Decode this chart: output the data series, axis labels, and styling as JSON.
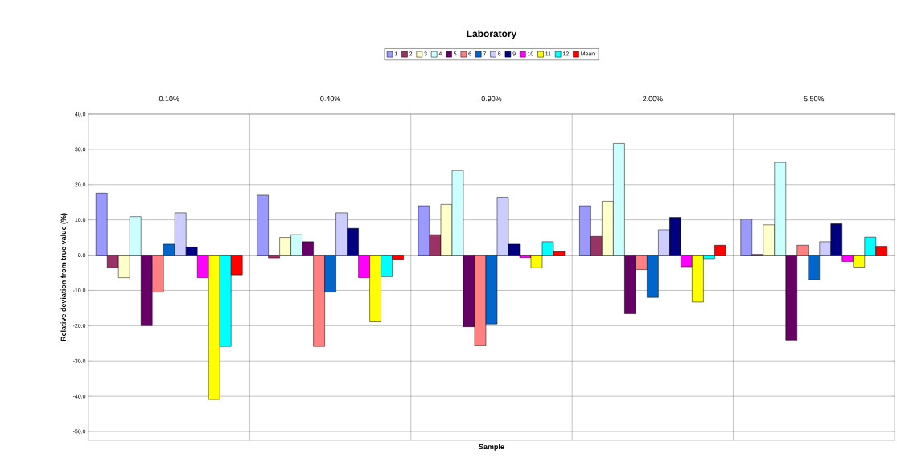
{
  "chart_data": {
    "type": "bar",
    "title": "Laboratory",
    "xlabel": "Sample",
    "ylabel": "Relative deviation from true value (%)",
    "categories": [
      "0.10%",
      "0.40%",
      "0.90%",
      "2.00%",
      "5.50%"
    ],
    "ylim": [
      -52.5,
      40
    ],
    "yticks": [
      {
        "value": -50,
        "label": "-50.0"
      },
      {
        "value": -40,
        "label": "-40.0"
      },
      {
        "value": -30,
        "label": "-30.0"
      },
      {
        "value": -20,
        "label": "-20.0"
      },
      {
        "value": -10,
        "label": "-10.0"
      },
      {
        "value": 0,
        "label": "0.0"
      },
      {
        "value": 10,
        "label": "10.0"
      },
      {
        "value": 20,
        "label": "20.0"
      },
      {
        "value": 30,
        "label": "30.0"
      },
      {
        "value": 40,
        "label": "40.0"
      }
    ],
    "grid": true,
    "legend": "top",
    "series": [
      {
        "name": "1",
        "color": "#9999ff",
        "values": [
          17.6,
          17.0,
          14.0,
          14.0,
          10.2
        ]
      },
      {
        "name": "2",
        "color": "#993366",
        "values": [
          -3.6,
          -0.8,
          5.8,
          5.3,
          0.2
        ]
      },
      {
        "name": "3",
        "color": "#ffffcc",
        "values": [
          -6.4,
          5.0,
          14.4,
          15.3,
          8.6
        ]
      },
      {
        "name": "4",
        "color": "#ccffff",
        "values": [
          10.9,
          5.8,
          24.0,
          31.7,
          26.3
        ]
      },
      {
        "name": "5",
        "color": "#660066",
        "values": [
          -20.0,
          3.8,
          -20.3,
          -16.6,
          -24.1
        ]
      },
      {
        "name": "6",
        "color": "#ff8080",
        "values": [
          -10.5,
          -25.9,
          -25.6,
          -4.1,
          2.8
        ]
      },
      {
        "name": "7",
        "color": "#0066cc",
        "values": [
          3.1,
          -10.5,
          -19.5,
          -12.0,
          -7.0
        ]
      },
      {
        "name": "8",
        "color": "#ccccff",
        "values": [
          12.0,
          12.0,
          16.4,
          7.2,
          3.8
        ]
      },
      {
        "name": "9",
        "color": "#000080",
        "values": [
          2.3,
          7.6,
          3.1,
          10.7,
          8.9
        ]
      },
      {
        "name": "10",
        "color": "#ff00ff",
        "values": [
          -6.4,
          -6.4,
          -0.7,
          -3.3,
          -1.8
        ]
      },
      {
        "name": "11",
        "color": "#ffff00",
        "values": [
          -40.9,
          -18.9,
          -3.6,
          -13.3,
          -3.4
        ]
      },
      {
        "name": "12",
        "color": "#00ffff",
        "values": [
          -25.9,
          -6.1,
          3.8,
          -1.0,
          5.1
        ]
      },
      {
        "name": "Mean",
        "color": "#ff0000",
        "values": [
          -5.6,
          -1.2,
          1.0,
          2.8,
          2.5
        ]
      }
    ]
  }
}
